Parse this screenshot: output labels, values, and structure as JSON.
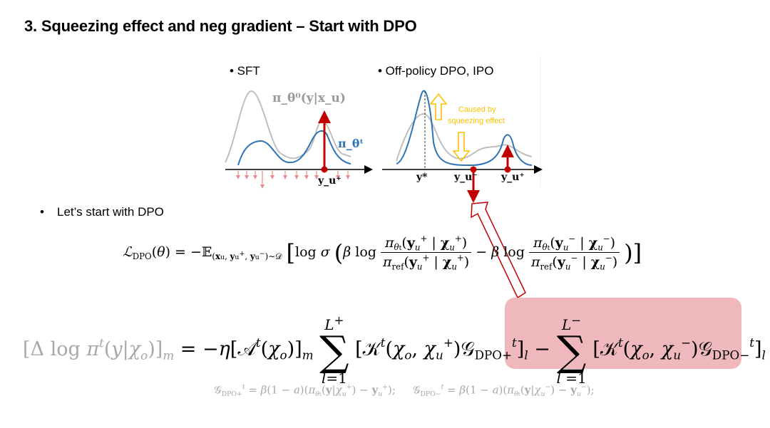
{
  "slide": {
    "title": "3. Squeezing effect and neg gradient – Start with DPO"
  },
  "figure": {
    "left_panel": {
      "title": "• SFT",
      "curve_label_gray": "π_θ⁰(y|x_u)",
      "curve_label_blue": "π_θᵗ",
      "point_label": "y_u⁺"
    },
    "right_panel": {
      "title": "• Off-policy DPO, IPO",
      "annotation_line1": "Caused by",
      "annotation_line2": "squeezing effect",
      "point_labels": [
        "y*",
        "y_u⁻",
        "y_u⁺"
      ]
    },
    "colors": {
      "gray_curve": "#bfbfbf",
      "blue_curve": "#2e75b6",
      "arrow_red": "#c00000",
      "annotation_orange": "#ffc000",
      "highlight_pink": "#efb8bc"
    }
  },
  "bullet": {
    "text": "Let’s start with DPO"
  },
  "equations": {
    "dpo_loss": "L_DPO(θ) = −E_(x_u, y_u⁺, y_u⁻)~D [ log σ ( β log π_θᵗ(y_u⁺ | χ_u⁺) / π_ref(y_u⁺ | χ_u⁺) − β log π_θᵗ(y_u⁻ | χ_u⁻) / π_ref(y_u⁻ | χ_u⁻) ) ]",
    "update_rule": "[Δ log πᵗ(y|χ_o)]_m = −η[Aᵗ(χ_o)]_m Σ_{l=1}^{L⁺} [Kᵗ(χ_o, χ_u⁺) G_DPO+ᵗ]_l − Σ_{l=1}^{L⁻} [Kᵗ(χ_o, χ_u⁻) G_DPO−ᵗ]_l",
    "g_definitions": "G_DPO+ᵗ = β(1 − a)(π_θᵗ(y|χ_u⁺) − y_u⁺);   G_DPO−ᵗ = β(1 − a)(π_θᵗ(y|χ_u⁻) − y_u⁻);"
  }
}
